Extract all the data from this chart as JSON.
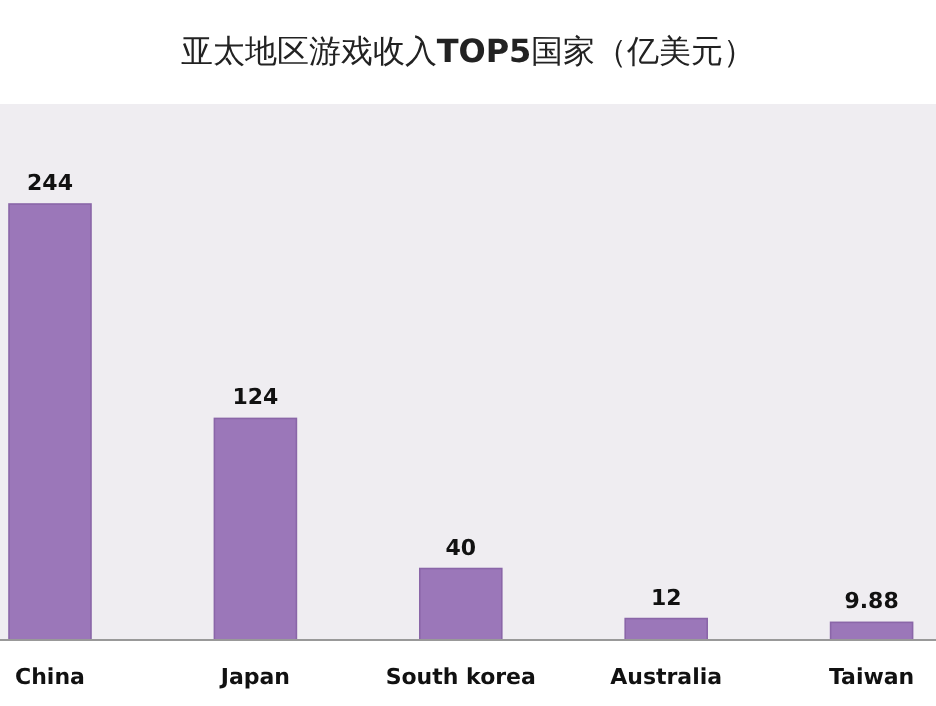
{
  "chart_data": {
    "type": "bar",
    "title": "亚太地区游戏收入**TOP5**国家（亿美元）",
    "categories": [
      "China",
      "Japan",
      "South korea",
      "Australia",
      "Taiwan"
    ],
    "values": [
      244,
      124,
      40,
      12,
      9.88
    ],
    "color": "#9b77b9",
    "data_labels": true
  }
}
